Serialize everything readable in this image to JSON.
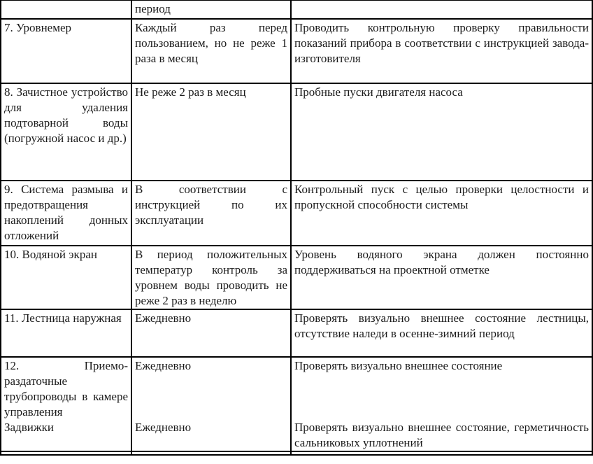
{
  "document": {
    "language": "ru",
    "type": "maintenance-schedule-table",
    "text_color": "#1b1b1b",
    "border_color": "#000000",
    "continuation_row": {
      "col1": "",
      "col2": "период",
      "col3": ""
    },
    "rows": [
      {
        "col1": "7. Уровнемер",
        "col2": "Каждый раз перед пользованием, но не реже 1 раза в месяц",
        "col3": "Проводить контрольную проверку правильности показаний прибора в соответствии с инструкцией завода-изготовителя"
      },
      {
        "col1": "8. Зачистное устройство для удаления подтоварной воды (погружной насос и др.)",
        "col2": "Не реже 2 раз в месяц",
        "col3": "Пробные пуски двигателя насоса"
      },
      {
        "col1": "9. Система размыва и предотвращения накоплений донных отложений",
        "col2": "В соответствии с инструкцией по их эксплуатации",
        "col3": "Контрольный пуск с целью проверки целостности и пропускной способности системы"
      },
      {
        "col1": "10. Водяной экран",
        "col2": "В период положительных температур контроль за уровнем воды проводить не реже 2 раз в неделю",
        "col3": "Уровень водяного экрана должен постоянно поддерживаться на проектной отметке"
      },
      {
        "col1": "11. Лестница наружная",
        "col2": "Ежедневно",
        "col3": "Проверять визуально внешнее состояние лестницы, отсутствие наледи в осенне-зимний период"
      }
    ],
    "row12": {
      "col1_first": "12. Приемо-раздаточные трубопроводы в камере управления",
      "col1_second": "Задвижки",
      "col2_first": "Ежедневно",
      "col2_second": "Ежедневно",
      "col3_first": "Проверять визуально внешнее состояние",
      "col3_second": "Проверять визуально внешнее состояние, герметичность сальниковых уплотнений"
    }
  }
}
